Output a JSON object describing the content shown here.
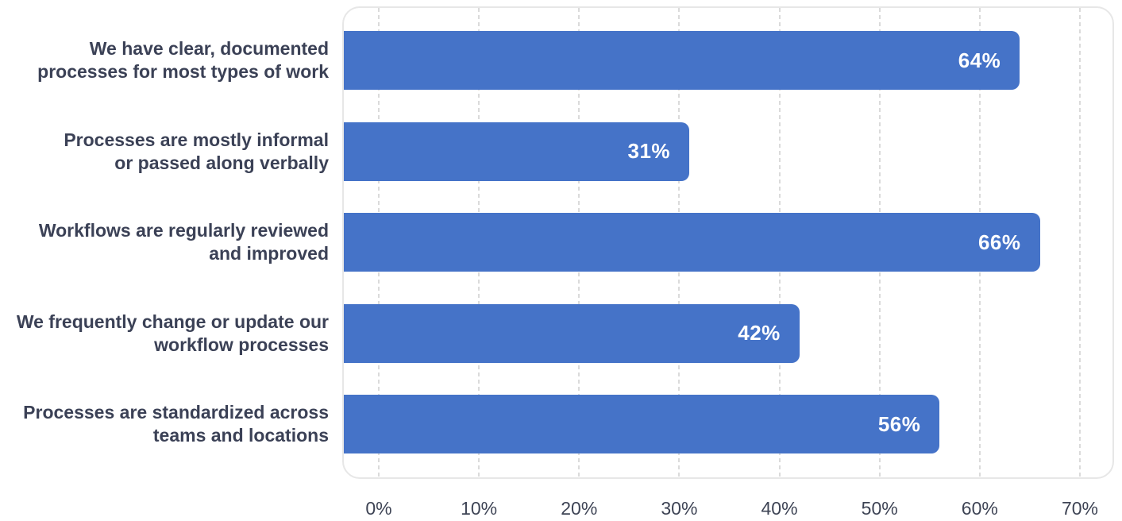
{
  "chart_data": {
    "type": "bar",
    "orientation": "horizontal",
    "title": "",
    "xlabel": "",
    "ylabel": "",
    "categories": [
      "We have clear, documented\nprocesses for most types of work",
      "Processes are mostly informal\nor passed along verbally",
      "Workflows are regularly reviewed\nand improved",
      "We frequently change or update our\nworkflow processes",
      "Processes are standardized across\nteams and locations"
    ],
    "values": [
      64,
      31,
      66,
      42,
      56
    ],
    "value_labels": [
      "64%",
      "31%",
      "66%",
      "42%",
      "56%"
    ],
    "x_ticks": [
      "0%",
      "10%",
      "20%",
      "30%",
      "40%",
      "50%",
      "60%",
      "70%"
    ],
    "x_tick_values": [
      0,
      10,
      20,
      30,
      40,
      50,
      60,
      70
    ],
    "xlim": [
      0,
      70
    ],
    "grid": "vertical-dashed",
    "legend": "none",
    "colors": {
      "bar": "#4573C8",
      "value_label": "#FFFFFF",
      "category_label": "#3B4156",
      "tick_label": "#3E4455",
      "gridline": "#DBDBDB",
      "plot_border": "#E7E7E7",
      "background": "#FFFFFF"
    }
  }
}
